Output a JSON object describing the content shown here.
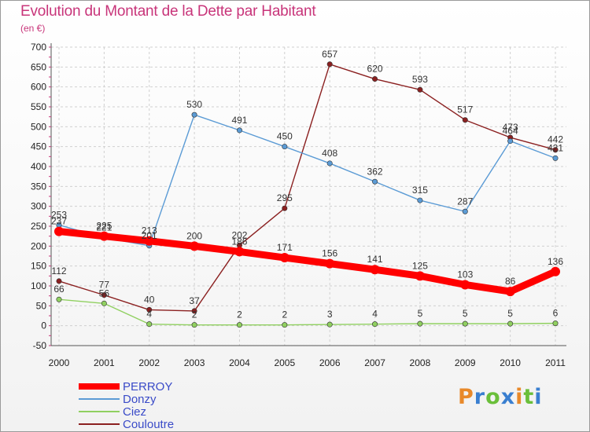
{
  "title": "Evolution du Montant de la Dette par Habitant",
  "unit": "(en €)",
  "logo": {
    "text": "Proxiti",
    "colors": [
      "#e8892a",
      "#3a7fd0",
      "#6abf3a",
      "#3a7fd0",
      "#e8892a",
      "#6abf3a",
      "#3a7fd0"
    ]
  },
  "chart_data": {
    "type": "line",
    "title": "Evolution du Montant de la Dette par Habitant",
    "ylabel": "(en €)",
    "xlabel": "",
    "x": [
      "2000",
      "2001",
      "2002",
      "2003",
      "2004",
      "2005",
      "2006",
      "2007",
      "2008",
      "2009",
      "2010",
      "2011"
    ],
    "ylim": [
      -50,
      700
    ],
    "yticks": [
      -50,
      0,
      50,
      100,
      150,
      200,
      250,
      300,
      350,
      400,
      450,
      500,
      550,
      600,
      650,
      700
    ],
    "grid": true,
    "legend": "bottom-left",
    "series": [
      {
        "name": "PERROY",
        "color": "#ff0000",
        "values": [
          237,
          225,
          213,
          200,
          186,
          171,
          156,
          141,
          125,
          103,
          86,
          136
        ],
        "labels": [
          "237",
          "225",
          "213",
          "200",
          "186",
          "171",
          "156",
          "141",
          "125",
          "103",
          "86",
          "136"
        ]
      },
      {
        "name": "Donzy",
        "color": "#5b9bd5",
        "values": [
          253,
          221,
          201,
          530,
          491,
          450,
          408,
          362,
          315,
          287,
          464,
          421
        ],
        "labels": [
          "253",
          "221",
          "201",
          "530",
          "491",
          "450",
          "408",
          "362",
          "315",
          "287",
          "464",
          "421"
        ]
      },
      {
        "name": "Ciez",
        "color": "#90d060",
        "values": [
          66,
          56,
          4,
          2,
          2,
          2,
          3,
          4,
          5,
          5,
          5,
          6
        ],
        "labels": [
          "66",
          "56",
          "4",
          "2",
          "2",
          "2",
          "3",
          "4",
          "5",
          "5",
          "5",
          "6"
        ]
      },
      {
        "name": "Couloutre",
        "color": "#8b2020",
        "values": [
          112,
          77,
          40,
          37,
          202,
          295,
          657,
          620,
          593,
          517,
          473,
          442
        ],
        "labels": [
          "112",
          "77",
          "40",
          "37",
          "202",
          "295",
          "657",
          "620",
          "593",
          "517",
          "473",
          "442"
        ]
      }
    ]
  }
}
